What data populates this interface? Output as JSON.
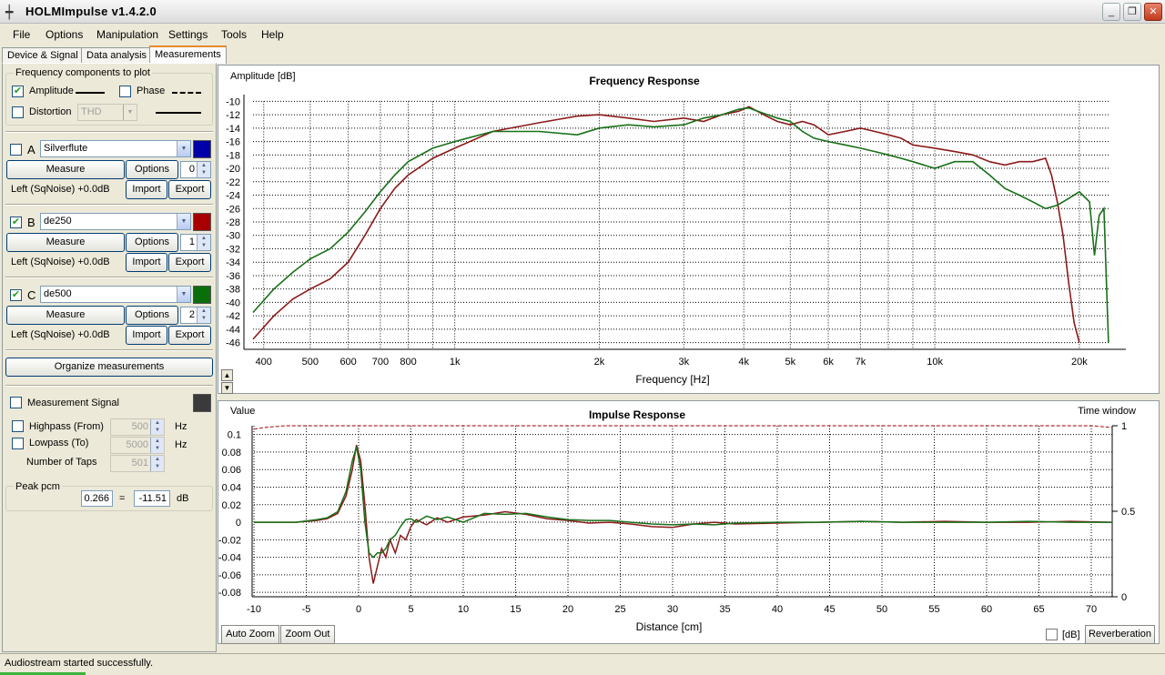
{
  "window": {
    "title": "HOLMImpulse  v1.4.2.0",
    "min": "_",
    "max": "❐",
    "close": "✕"
  },
  "menu": [
    {
      "label": "File"
    },
    {
      "label": "Options"
    },
    {
      "label": "Manipulation"
    },
    {
      "label": "Settings"
    },
    {
      "label": "Tools"
    },
    {
      "label": "Help"
    }
  ],
  "tabs": [
    {
      "label": "Device & Signal"
    },
    {
      "label": "Data analysis"
    },
    {
      "label": "Measurements"
    }
  ],
  "freq_components": {
    "title": "Frequency components to plot",
    "amplitude_label": "Amplitude",
    "amplitude_checked": "✔",
    "phase_label": "Phase",
    "distortion_label": "Distortion",
    "distortion_type": "THD"
  },
  "measurements": [
    {
      "letter": "A",
      "checked": "",
      "name": "Silverflute",
      "color": "#0000a8",
      "measure": "Measure",
      "options": "Options",
      "index": "0",
      "source": "Left (SqNoise) +0.0dB",
      "import": "Import",
      "export": "Export"
    },
    {
      "letter": "B",
      "checked": "✔",
      "name": "de250",
      "color": "#a80000",
      "measure": "Measure",
      "options": "Options",
      "index": "1",
      "source": "Left (SqNoise) +0.0dB",
      "import": "Import",
      "export": "Export"
    },
    {
      "letter": "C",
      "checked": "✔",
      "name": "de500",
      "color": "#0a6e0a",
      "measure": "Measure",
      "options": "Options",
      "index": "2",
      "source": "Left (SqNoise) +0.0dB",
      "import": "Import",
      "export": "Export"
    }
  ],
  "organize_label": "Organize measurements",
  "signal": {
    "label": "Measurement Signal",
    "color": "#3a3a3a",
    "highpass_label": "Highpass (From)",
    "highpass_value": "500",
    "lowpass_label": "Lowpass (To)",
    "lowpass_value": "5000",
    "taps_label": "Number of Taps",
    "taps_value": "501",
    "hz": "Hz"
  },
  "peak": {
    "title": "Peak pcm",
    "value": "0.266",
    "equals": "=",
    "db_value": "-11.51",
    "unit": "dB"
  },
  "freq_chart": {
    "title": "Frequency Response",
    "ylabel": "Amplitude [dB]",
    "xlabel": "Frequency [Hz]",
    "xticks": [
      {
        "v": 400,
        "label": "400"
      },
      {
        "v": 500,
        "label": "500"
      },
      {
        "v": 600,
        "label": "600"
      },
      {
        "v": 700,
        "label": "700"
      },
      {
        "v": 800,
        "label": "800"
      },
      {
        "v": 1000,
        "label": "1k"
      },
      {
        "v": 2000,
        "label": "2k"
      },
      {
        "v": 3000,
        "label": "3k"
      },
      {
        "v": 4000,
        "label": "4k"
      },
      {
        "v": 5000,
        "label": "5k"
      },
      {
        "v": 6000,
        "label": "6k"
      },
      {
        "v": 7000,
        "label": "7k"
      },
      {
        "v": 10000,
        "label": "10k"
      },
      {
        "v": 20000,
        "label": "20k"
      }
    ],
    "yticks": [
      "-10",
      "-12",
      "-14",
      "-16",
      "-18",
      "-20",
      "-22",
      "-24",
      "-26",
      "-28",
      "-30",
      "-32",
      "-34",
      "-36",
      "-38",
      "-40",
      "-42",
      "-44",
      "-46"
    ]
  },
  "impulse_chart": {
    "title": "Impulse Response",
    "ylabel": "Value",
    "y2label": "Time window",
    "xlabel": "Distance [cm]",
    "xticks": [
      "-10",
      "-5",
      "0",
      "5",
      "10",
      "15",
      "20",
      "25",
      "30",
      "35",
      "40",
      "45",
      "50",
      "55",
      "60",
      "65",
      "70"
    ],
    "yticks": [
      "0.1",
      "0.08",
      "0.06",
      "0.04",
      "0.02",
      "0",
      "-0.02",
      "-0.04",
      "-0.06",
      "-0.08"
    ],
    "y2ticks": [
      "1",
      "0.5",
      "0"
    ],
    "auto_zoom": "Auto Zoom",
    "zoom_out": "Zoom Out",
    "db_label": "[dB]",
    "reverberation": "Reverberation"
  },
  "chart_data": [
    {
      "type": "line",
      "title": "Frequency Response",
      "xlabel": "Frequency [Hz]",
      "ylabel": "Amplitude [dB]",
      "xscale": "log",
      "xlim": [
        380,
        25000
      ],
      "ylim": [
        -47,
        -9
      ],
      "grid": true,
      "series": [
        {
          "name": "de250",
          "color": "#8b1a1a",
          "x": [
            380,
            420,
            460,
            500,
            550,
            600,
            650,
            700,
            750,
            800,
            900,
            1000,
            1200,
            1500,
            1800,
            2000,
            2300,
            2600,
            3000,
            3300,
            3600,
            3900,
            4100,
            4400,
            4700,
            5000,
            5300,
            5600,
            6000,
            6500,
            7000,
            7500,
            8000,
            8500,
            9000,
            10000,
            11000,
            12000,
            13000,
            14000,
            15000,
            16000,
            17000,
            17500,
            18000,
            18500,
            19000,
            19500,
            20000
          ],
          "y": [
            -45.5,
            -42,
            -39.5,
            -38,
            -36.5,
            -34,
            -30,
            -26,
            -23,
            -21,
            -18.5,
            -17,
            -14.5,
            -13.2,
            -12.2,
            -12,
            -12.5,
            -13,
            -12.5,
            -13,
            -12,
            -11.5,
            -10.8,
            -12,
            -13,
            -13.5,
            -13,
            -13.5,
            -15,
            -14.5,
            -14,
            -14.5,
            -15,
            -15.5,
            -16.5,
            -17,
            -17.5,
            -18,
            -19,
            -19.5,
            -19,
            -19,
            -18.5,
            -21,
            -25,
            -30,
            -37,
            -43,
            -46
          ]
        },
        {
          "name": "de500",
          "color": "#187018",
          "x": [
            380,
            420,
            460,
            500,
            550,
            600,
            650,
            700,
            750,
            800,
            900,
            1000,
            1200,
            1500,
            1800,
            2000,
            2300,
            2600,
            3000,
            3300,
            3600,
            3900,
            4100,
            4400,
            4700,
            5000,
            5300,
            5600,
            6000,
            6500,
            7000,
            7500,
            8000,
            8500,
            9000,
            10000,
            11000,
            12000,
            13000,
            14000,
            15000,
            16000,
            17000,
            18000,
            19000,
            20000,
            21000,
            21500,
            22000,
            22500,
            23000
          ],
          "y": [
            -41.5,
            -38,
            -35.5,
            -33.5,
            -32,
            -29.5,
            -26.5,
            -23.5,
            -21,
            -19,
            -17,
            -16,
            -14.5,
            -14.5,
            -15,
            -14,
            -13.5,
            -13.8,
            -13.5,
            -12.5,
            -12,
            -11.2,
            -11,
            -11.8,
            -12.5,
            -13,
            -14.5,
            -15.5,
            -16,
            -16.5,
            -17,
            -17.5,
            -18,
            -18.5,
            -19,
            -20,
            -19,
            -19,
            -21,
            -23,
            -24,
            -25,
            -26,
            -25.5,
            -24.5,
            -23.5,
            -25,
            -33,
            -27,
            -26,
            -46
          ]
        }
      ]
    },
    {
      "type": "line",
      "title": "Impulse Response",
      "xlabel": "Distance [cm]",
      "ylabel": "Value",
      "xlim": [
        -10,
        72
      ],
      "ylim": [
        -0.085,
        0.11
      ],
      "grid": true,
      "series": [
        {
          "name": "de250",
          "color": "#8b1a1a",
          "x": [
            -10,
            -6,
            -4,
            -3,
            -2,
            -1.2,
            -0.6,
            -0.2,
            0.2,
            0.6,
            1.0,
            1.4,
            1.8,
            2.2,
            2.6,
            3.0,
            3.5,
            4.0,
            4.5,
            5.0,
            5.5,
            6.5,
            7.5,
            8.5,
            10,
            12,
            14,
            16,
            18,
            20,
            22,
            24,
            26,
            28,
            30,
            32,
            34,
            36,
            40,
            44,
            48,
            52,
            56,
            60,
            64,
            68,
            72
          ],
          "y": [
            0,
            0,
            0.002,
            0.004,
            0.01,
            0.03,
            0.06,
            0.088,
            0.07,
            0.02,
            -0.04,
            -0.07,
            -0.05,
            -0.03,
            -0.04,
            -0.02,
            -0.035,
            -0.015,
            -0.02,
            -0.005,
            0.003,
            -0.003,
            0.005,
            0.0,
            0.006,
            0.008,
            0.012,
            0.009,
            0.004,
            0.002,
            -0.001,
            0.0,
            -0.002,
            -0.005,
            -0.006,
            -0.002,
            0.0,
            -0.002,
            -0.001,
            0.0,
            0.001,
            0.0,
            0.001,
            0.0,
            0.0,
            0.001,
            0.0
          ]
        },
        {
          "name": "de500",
          "color": "#187018",
          "x": [
            -10,
            -6,
            -4,
            -3,
            -2,
            -1.2,
            -0.6,
            -0.2,
            0.2,
            0.6,
            1.0,
            1.4,
            1.8,
            2.2,
            2.6,
            3.0,
            3.5,
            4.0,
            4.5,
            5.0,
            5.5,
            6.5,
            7.5,
            8.5,
            10,
            12,
            14,
            16,
            18,
            20,
            22,
            24,
            26,
            28,
            30,
            32,
            34,
            36,
            40,
            44,
            48,
            52,
            56,
            60,
            64,
            68,
            72
          ],
          "y": [
            0,
            0,
            0.003,
            0.005,
            0.012,
            0.035,
            0.07,
            0.086,
            0.06,
            0.0,
            -0.035,
            -0.04,
            -0.035,
            -0.035,
            -0.03,
            -0.02,
            -0.015,
            -0.005,
            0.003,
            0.004,
            0.0,
            0.007,
            0.003,
            0.006,
            0.0,
            0.01,
            0.009,
            0.01,
            0.006,
            0.003,
            0.002,
            0.002,
            0.0,
            -0.002,
            -0.003,
            -0.002,
            -0.003,
            -0.001,
            0.0,
            0.0,
            0.001,
            0.0,
            0.0,
            0.0,
            0.001,
            0.0,
            0.0
          ]
        },
        {
          "name": "Time window",
          "color": "#b03030",
          "axis": "right",
          "x": [
            -10,
            -9,
            -7,
            0,
            20,
            40,
            60,
            70,
            72
          ],
          "y": [
            0.98,
            0.99,
            1.0,
            1.0,
            1.0,
            1.0,
            1.0,
            1.0,
            0.99
          ]
        }
      ]
    }
  ]
}
